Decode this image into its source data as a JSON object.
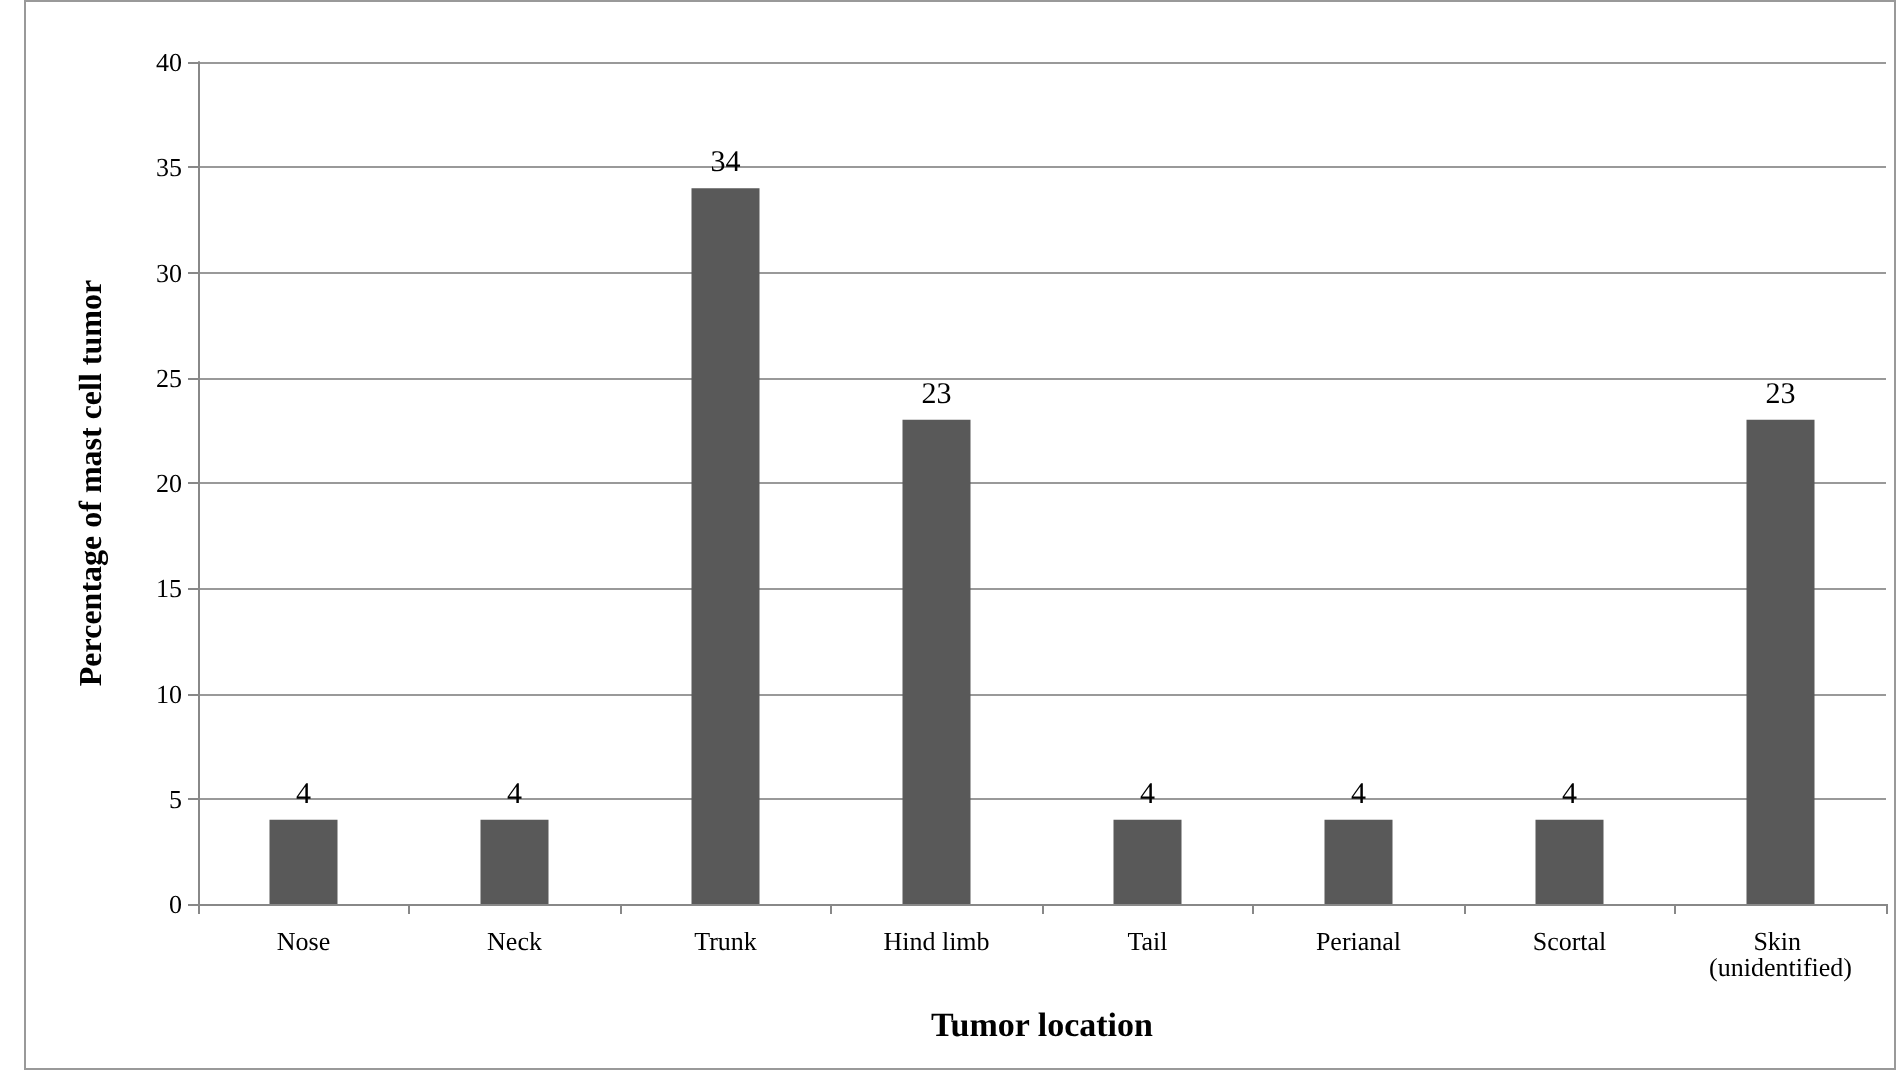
{
  "chart_data": {
    "type": "bar",
    "xlabel": "Tumor location",
    "ylabel": "Percentage of mast cell tumor",
    "categories": [
      "Nose",
      "Neck",
      "Trunk",
      "Hind limb",
      "Tail",
      "Perianal",
      "Scortal",
      "Skin (unidentified)"
    ],
    "values": [
      4,
      4,
      34,
      23,
      4,
      4,
      4,
      23
    ],
    "color": "#595959",
    "ylim": [
      0,
      40
    ],
    "yticks": [
      0,
      5,
      10,
      15,
      20,
      25,
      30,
      35,
      40
    ],
    "grid": "y",
    "data_labels": true
  }
}
